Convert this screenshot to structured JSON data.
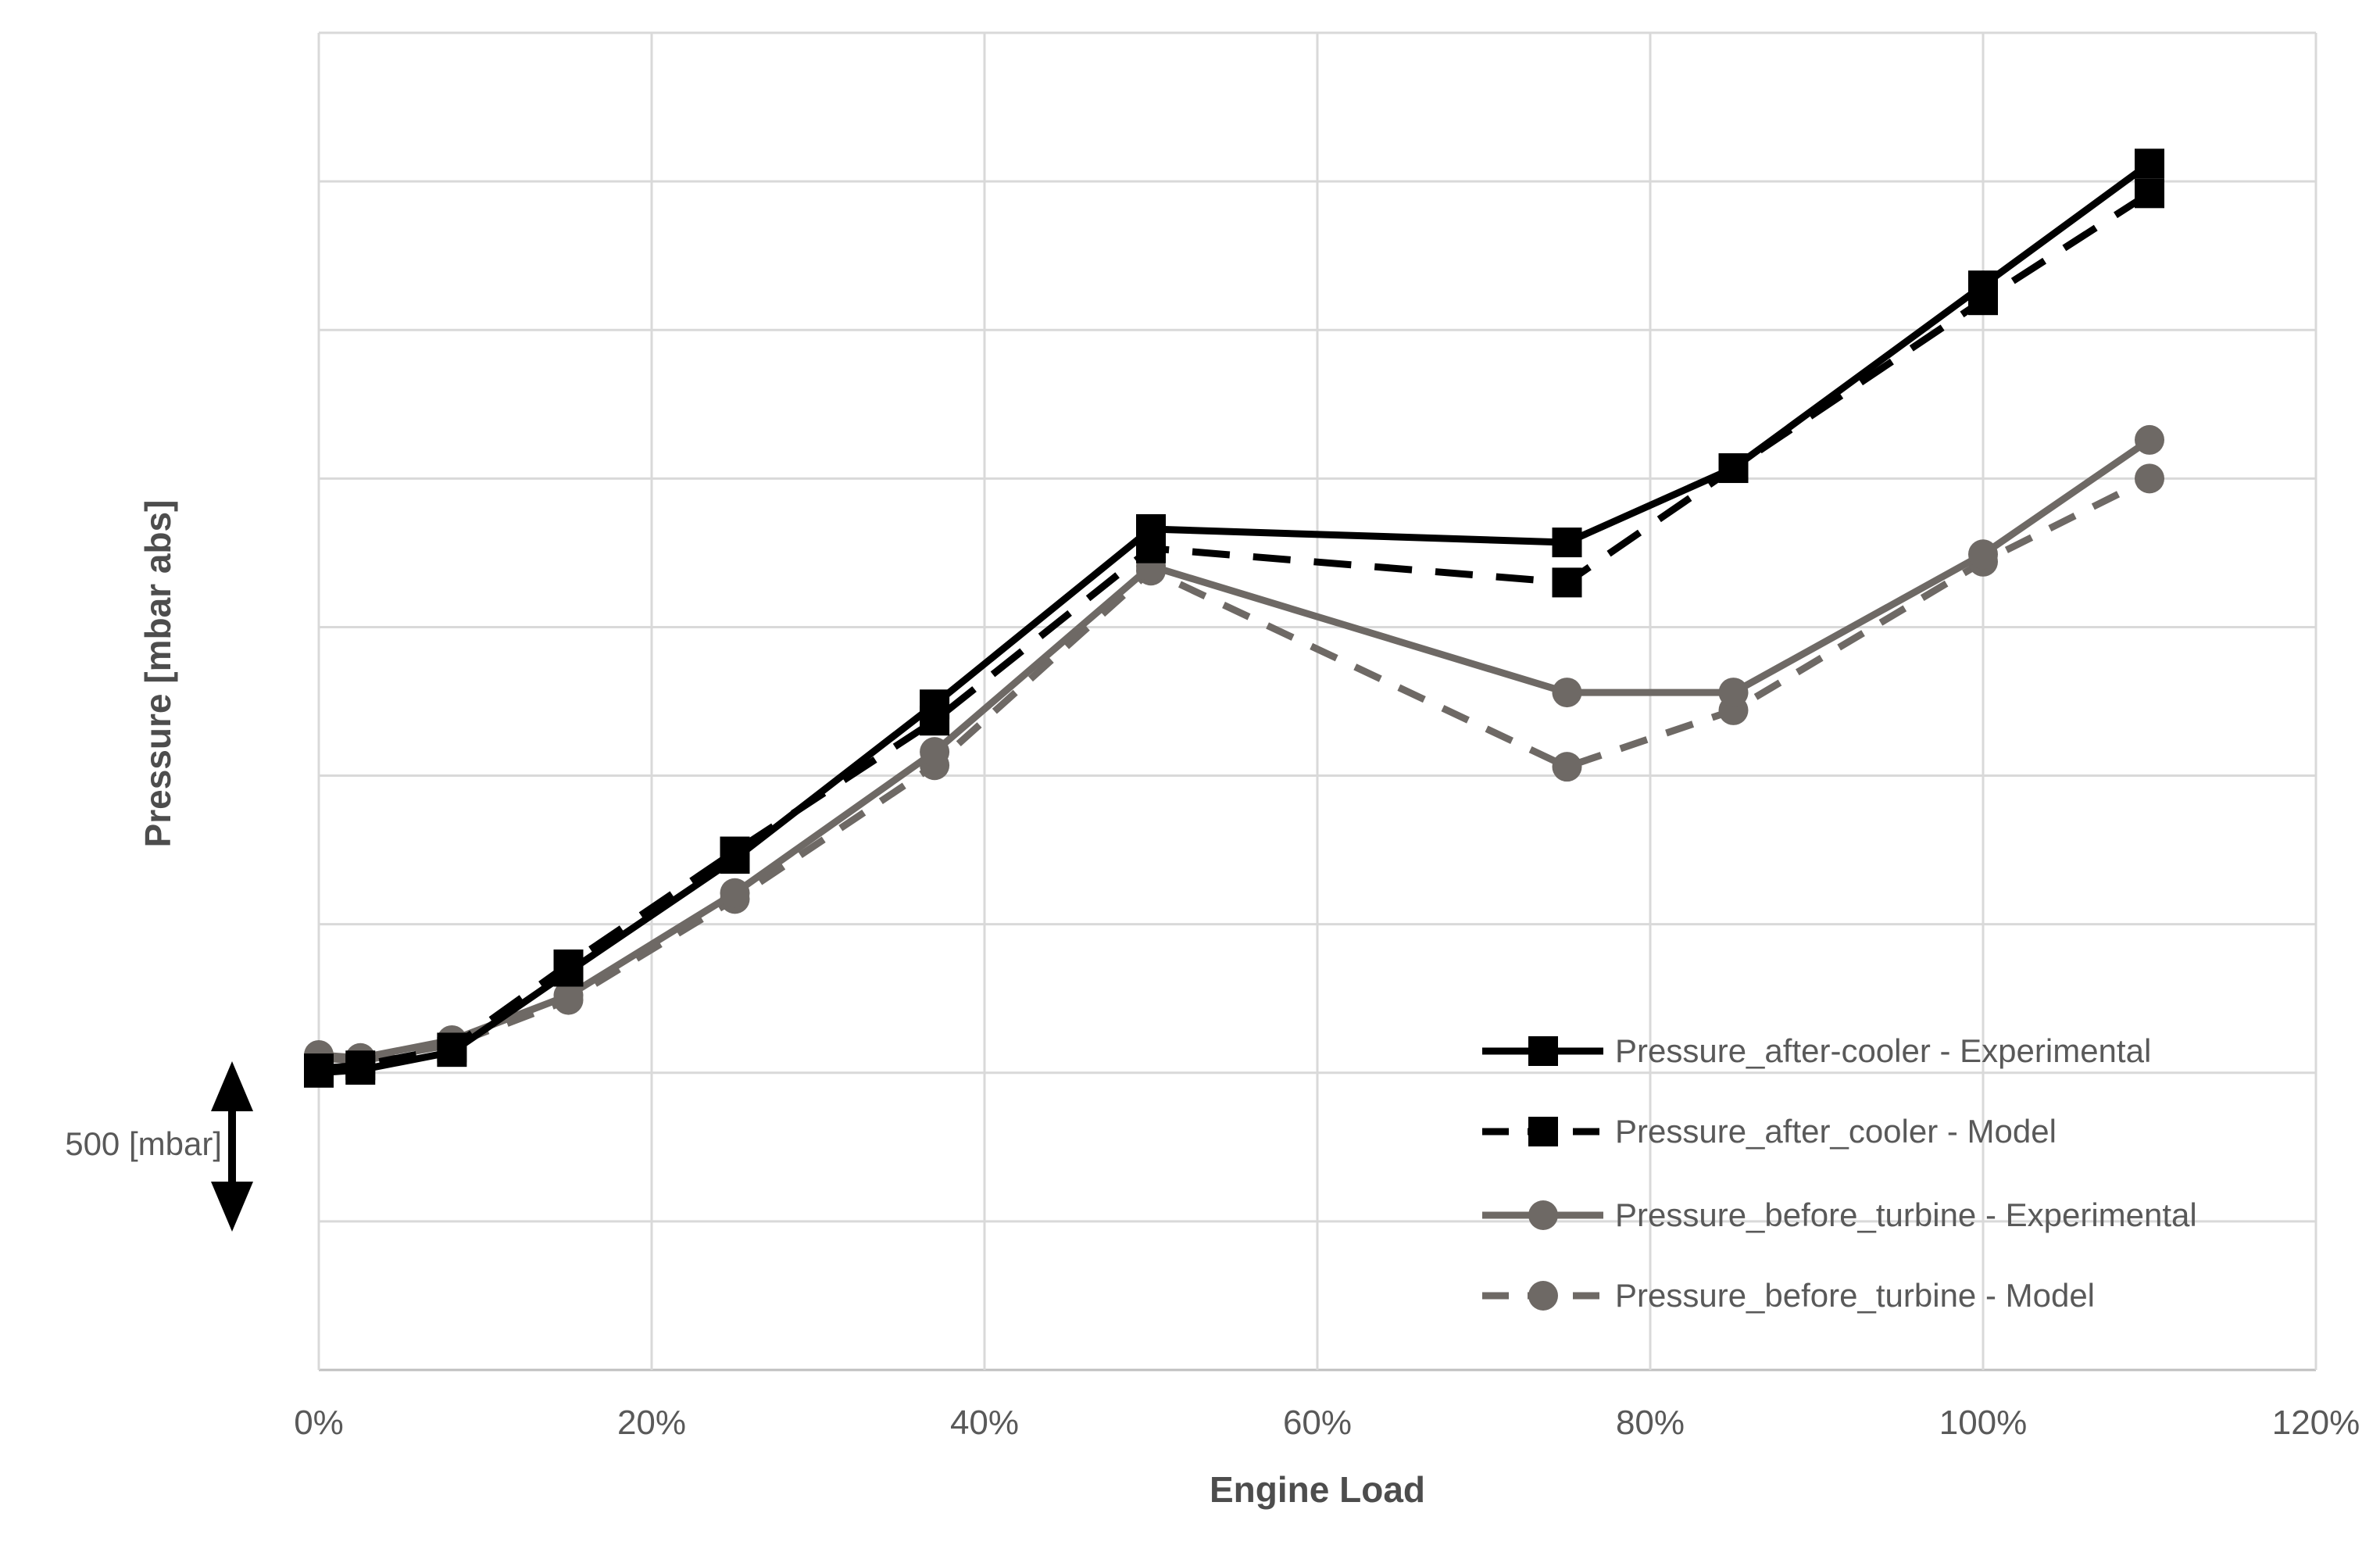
{
  "axes": {
    "x_title": "Engine Load",
    "y_title": "Pressure [mbar abs]"
  },
  "annotation": {
    "label": "500 [mbar]",
    "meaning": "vertical double arrow spanning one horizontal gridline gap"
  },
  "chart_data": {
    "type": "line",
    "title": "",
    "xlabel": "Engine Load",
    "ylabel": "Pressure [mbar abs]",
    "x": [
      0,
      2.5,
      8,
      15,
      25,
      37,
      50,
      75,
      85,
      100,
      110
    ],
    "x_ticks": [
      "0%",
      "20%",
      "40%",
      "60%",
      "80%",
      "100%",
      "120%"
    ],
    "x_tick_values": [
      0,
      20,
      40,
      60,
      80,
      100,
      120
    ],
    "xlim": [
      0,
      120
    ],
    "ylim": [
      0,
      4500
    ],
    "y_gridline_step_mbar": 500,
    "y_tick_labels_shown": false,
    "grid": true,
    "legend_position": "inside-bottom-right",
    "series": [
      {
        "name": "Pressure_before_turbine - Model",
        "legend_order": 4,
        "color": "#6e6965",
        "line_style": "dashed",
        "marker": "circle",
        "values": [
          1050,
          1040,
          1095,
          1245,
          1585,
          2035,
          2690,
          2030,
          2220,
          2720,
          3000
        ]
      },
      {
        "name": "Pressure_before_turbine - Experimental",
        "legend_order": 3,
        "color": "#6e6965",
        "line_style": "solid",
        "marker": "circle",
        "values": [
          1060,
          1050,
          1110,
          1260,
          1605,
          2080,
          2705,
          2280,
          2280,
          2745,
          3130
        ]
      },
      {
        "name": "Pressure_after_cooler - Model",
        "legend_order": 2,
        "color": "#000000",
        "line_style": "dashed",
        "marker": "square",
        "values": [
          1015,
          1025,
          1085,
          1365,
          1745,
          2185,
          2765,
          2650,
          3035,
          3600,
          3960
        ]
      },
      {
        "name": "Pressure_after-cooler - Experimental",
        "legend_order": 1,
        "color": "#000000",
        "line_style": "solid",
        "marker": "square",
        "values": [
          1000,
          1010,
          1070,
          1340,
          1720,
          2240,
          2830,
          2785,
          3035,
          3650,
          4060
        ]
      }
    ],
    "legend_entries": [
      "Pressure_after-cooler - Experimental",
      "Pressure_after_cooler - Model",
      "Pressure_before_turbine - Experimental",
      "Pressure_before_turbine - Model"
    ],
    "colors": {
      "after_cooler_series": "#000000",
      "before_turbine_series": "#6e6965",
      "gridlines": "#d9d9d9",
      "axis_line": "#bfbfbf",
      "text": "#595959",
      "annotation_arrow": "#000000"
    }
  }
}
